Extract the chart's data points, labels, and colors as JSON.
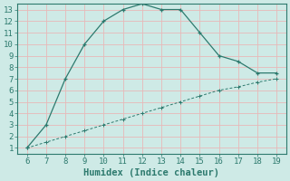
{
  "xlabel": "Humidex (Indice chaleur)",
  "xlim": [
    5.5,
    19.5
  ],
  "ylim": [
    0.5,
    13.5
  ],
  "xticks": [
    6,
    7,
    8,
    9,
    10,
    11,
    12,
    13,
    14,
    15,
    16,
    17,
    18,
    19
  ],
  "yticks": [
    1,
    2,
    3,
    4,
    5,
    6,
    7,
    8,
    9,
    10,
    11,
    12,
    13
  ],
  "upper_x": [
    6,
    7,
    8,
    9,
    10,
    11,
    12,
    13,
    14,
    15,
    16,
    17,
    18,
    19
  ],
  "upper_y": [
    1,
    3,
    7,
    10,
    12,
    13,
    13.5,
    13,
    13,
    11,
    9,
    8.5,
    7.5,
    7.5
  ],
  "lower_x": [
    6,
    7,
    8,
    9,
    10,
    11,
    12,
    13,
    14,
    15,
    16,
    17,
    18,
    19
  ],
  "lower_y": [
    1,
    1.5,
    2,
    2.5,
    3,
    3.5,
    4,
    4.5,
    5,
    5.5,
    6,
    6.3,
    6.7,
    7
  ],
  "line_color": "#2d7a6e",
  "bg_color": "#ceeae6",
  "grid_color": "#e8b8b8",
  "axis_color": "#2d7a6e",
  "tick_label_fontsize": 6.5,
  "xlabel_fontsize": 7.5,
  "marker": "+"
}
